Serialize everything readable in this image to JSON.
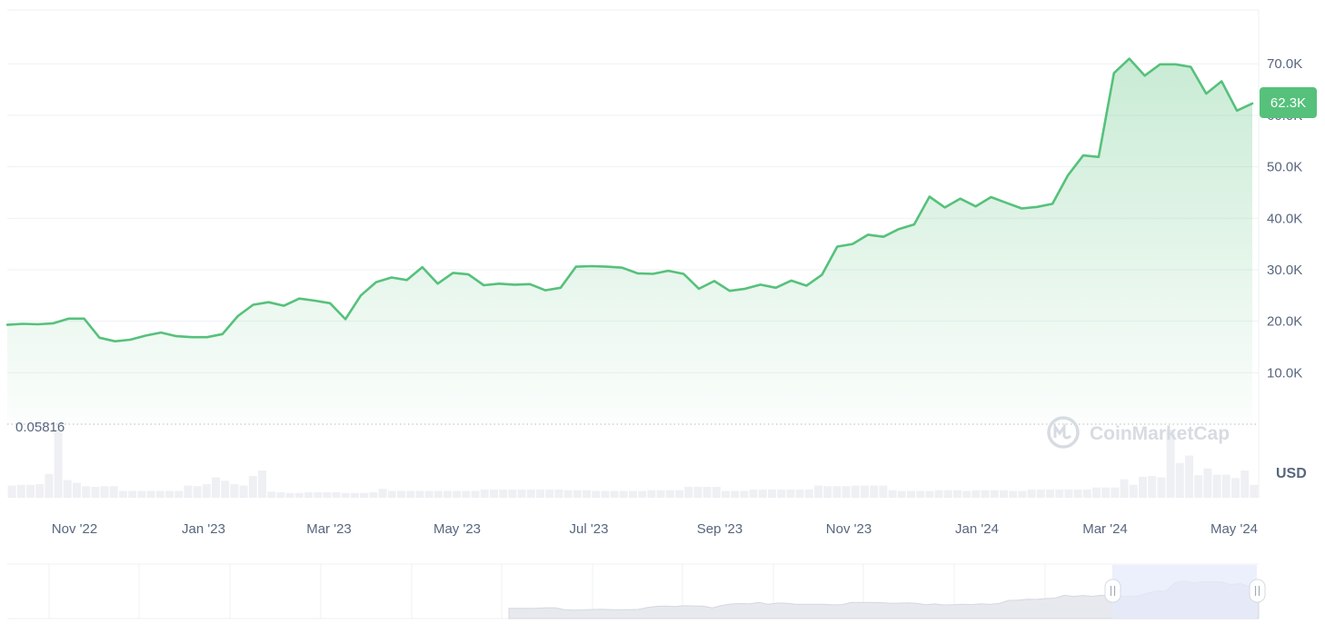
{
  "watermark": "CoinMarketCap",
  "currency_label": "USD",
  "reference_line_label": "0.05816",
  "price_badge": "62.3K",
  "colors": {
    "line": "#56c17b",
    "badge": "#56c17b",
    "volume": "#eef0f4",
    "navigator_window": "#e6eafb"
  },
  "chart_data": {
    "type": "area",
    "title": "",
    "xlabel": "",
    "ylabel": "",
    "ylim": [
      0,
      80000
    ],
    "y_tick_values": [
      10000,
      20000,
      30000,
      40000,
      50000,
      60000,
      70000
    ],
    "y_tick_labels": [
      "10.0K",
      "20.0K",
      "30.0K",
      "40.0K",
      "50.0K",
      "60.0K",
      "70.0K"
    ],
    "x_tick_labels": [
      "Nov '22",
      "Jan '23",
      "Mar '23",
      "May '23",
      "Jul '23",
      "Sep '23",
      "Nov '23",
      "Jan '24",
      "Mar '24",
      "May '24"
    ],
    "grid": true,
    "series": [
      {
        "values": [
          19300,
          19500,
          19400,
          19600,
          20500,
          20500,
          16800,
          16100,
          16400,
          17200,
          17800,
          17100,
          16900,
          16900,
          17500,
          21000,
          23200,
          23700,
          23000,
          24400,
          24000,
          23500,
          20400,
          25000,
          27600,
          28500,
          28000,
          30500,
          27300,
          29400,
          29100,
          27000,
          27300,
          27100,
          27200,
          26000,
          26500,
          30600,
          30700,
          30600,
          30400,
          29300,
          29200,
          29800,
          29200,
          26300,
          27800,
          25900,
          26300,
          27100,
          26500,
          27900,
          26900,
          29000,
          34500,
          35000,
          36800,
          36400,
          37900,
          38800,
          44200,
          42100,
          43800,
          42300,
          44100,
          43000,
          41900,
          42200,
          42800,
          48300,
          52200,
          51900,
          68200,
          71000,
          67700,
          69900,
          69900,
          69400,
          64200,
          66600,
          60900,
          62300
        ]
      }
    ],
    "volume": [
      18,
      19,
      19,
      20,
      35,
      100,
      26,
      22,
      17,
      16,
      17,
      17,
      10,
      10,
      10,
      10,
      10,
      10,
      10,
      18,
      17,
      20,
      30,
      25,
      20,
      18,
      32,
      40,
      9,
      8,
      7,
      7,
      8,
      8,
      8,
      8,
      7,
      7,
      7,
      8,
      13,
      10,
      10,
      10,
      10,
      10,
      10,
      10,
      10,
      10,
      10,
      12,
      12,
      12,
      12,
      12,
      12,
      12,
      12,
      12,
      11,
      11,
      11,
      10,
      10,
      10,
      10,
      10,
      10,
      11,
      11,
      11,
      11,
      16,
      16,
      16,
      16,
      10,
      10,
      10,
      12,
      12,
      12,
      12,
      12,
      12,
      12,
      18,
      17,
      17,
      17,
      18,
      18,
      18,
      18,
      11,
      10,
      10,
      10,
      10,
      11,
      11,
      11,
      10,
      11,
      11,
      11,
      11,
      10,
      10,
      12,
      12,
      12,
      12,
      12,
      12,
      12,
      15,
      15,
      15,
      27,
      19,
      31,
      32,
      30,
      100,
      51,
      62,
      33,
      43,
      34,
      34,
      29,
      40,
      19
    ]
  }
}
